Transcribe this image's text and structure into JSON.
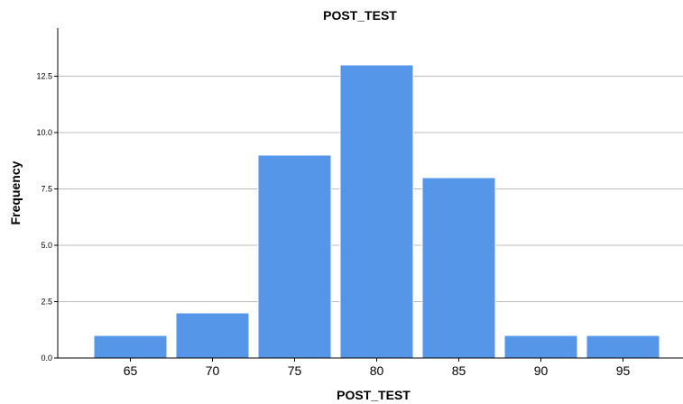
{
  "chart_data": {
    "type": "bar",
    "title": "POST_TEST",
    "xlabel": "POST_TEST",
    "ylabel": "Frequency",
    "categories": [
      "65",
      "70",
      "75",
      "80",
      "85",
      "90",
      "95"
    ],
    "values": [
      1,
      2,
      9,
      13,
      8,
      1,
      1
    ],
    "ylim": [
      0,
      14.5
    ],
    "yticks": [
      "0.0",
      "2.5",
      "5.0",
      "7.5",
      "10.0",
      "12.5"
    ],
    "ytick_values": [
      0,
      2.5,
      5,
      7.5,
      10,
      12.5
    ],
    "grid": true,
    "legend": "none",
    "bar_color": "#5696E8",
    "bar_edge_color": "#FFFFFF",
    "grid_color": "#BDBDBD",
    "axis_color": "#000000"
  }
}
